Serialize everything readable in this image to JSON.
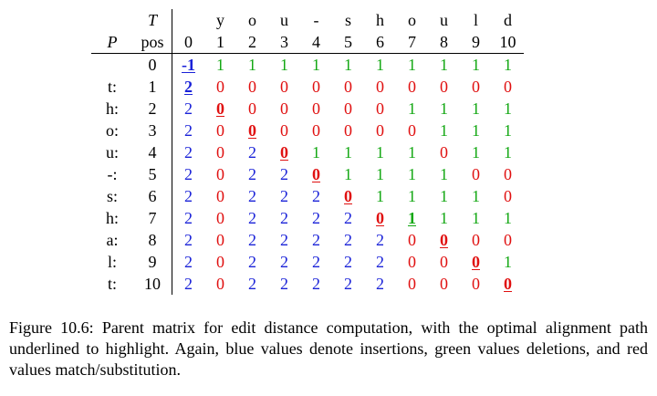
{
  "figure": {
    "row_axis_label": "P",
    "col_axis_label": "T",
    "pos_label": "pos",
    "text_chars": [
      "y",
      "o",
      "u",
      "-",
      "s",
      "h",
      "o",
      "u",
      "l",
      "d"
    ],
    "col_positions": [
      "0",
      "1",
      "2",
      "3",
      "4",
      "5",
      "6",
      "7",
      "8",
      "9",
      "10"
    ],
    "rows": [
      {
        "label": "",
        "pos": "0",
        "cells": [
          {
            "v": "-1",
            "c": "blue",
            "o": true
          },
          {
            "v": "1",
            "c": "green"
          },
          {
            "v": "1",
            "c": "green"
          },
          {
            "v": "1",
            "c": "green"
          },
          {
            "v": "1",
            "c": "green"
          },
          {
            "v": "1",
            "c": "green"
          },
          {
            "v": "1",
            "c": "green"
          },
          {
            "v": "1",
            "c": "green"
          },
          {
            "v": "1",
            "c": "green"
          },
          {
            "v": "1",
            "c": "green"
          },
          {
            "v": "1",
            "c": "green"
          }
        ]
      },
      {
        "label": "t:",
        "pos": "1",
        "cells": [
          {
            "v": "2",
            "c": "blue",
            "o": true
          },
          {
            "v": "0",
            "c": "red"
          },
          {
            "v": "0",
            "c": "red"
          },
          {
            "v": "0",
            "c": "red"
          },
          {
            "v": "0",
            "c": "red"
          },
          {
            "v": "0",
            "c": "red"
          },
          {
            "v": "0",
            "c": "red"
          },
          {
            "v": "0",
            "c": "red"
          },
          {
            "v": "0",
            "c": "red"
          },
          {
            "v": "0",
            "c": "red"
          },
          {
            "v": "0",
            "c": "red"
          }
        ]
      },
      {
        "label": "h:",
        "pos": "2",
        "cells": [
          {
            "v": "2",
            "c": "blue"
          },
          {
            "v": "0",
            "c": "red",
            "o": true
          },
          {
            "v": "0",
            "c": "red"
          },
          {
            "v": "0",
            "c": "red"
          },
          {
            "v": "0",
            "c": "red"
          },
          {
            "v": "0",
            "c": "red"
          },
          {
            "v": "0",
            "c": "red"
          },
          {
            "v": "1",
            "c": "green"
          },
          {
            "v": "1",
            "c": "green"
          },
          {
            "v": "1",
            "c": "green"
          },
          {
            "v": "1",
            "c": "green"
          }
        ]
      },
      {
        "label": "o:",
        "pos": "3",
        "cells": [
          {
            "v": "2",
            "c": "blue"
          },
          {
            "v": "0",
            "c": "red"
          },
          {
            "v": "0",
            "c": "red",
            "o": true
          },
          {
            "v": "0",
            "c": "red"
          },
          {
            "v": "0",
            "c": "red"
          },
          {
            "v": "0",
            "c": "red"
          },
          {
            "v": "0",
            "c": "red"
          },
          {
            "v": "0",
            "c": "red"
          },
          {
            "v": "1",
            "c": "green"
          },
          {
            "v": "1",
            "c": "green"
          },
          {
            "v": "1",
            "c": "green"
          }
        ]
      },
      {
        "label": "u:",
        "pos": "4",
        "cells": [
          {
            "v": "2",
            "c": "blue"
          },
          {
            "v": "0",
            "c": "red"
          },
          {
            "v": "2",
            "c": "blue"
          },
          {
            "v": "0",
            "c": "red",
            "o": true
          },
          {
            "v": "1",
            "c": "green"
          },
          {
            "v": "1",
            "c": "green"
          },
          {
            "v": "1",
            "c": "green"
          },
          {
            "v": "1",
            "c": "green"
          },
          {
            "v": "0",
            "c": "red"
          },
          {
            "v": "1",
            "c": "green"
          },
          {
            "v": "1",
            "c": "green"
          }
        ]
      },
      {
        "label": "-:",
        "pos": "5",
        "cells": [
          {
            "v": "2",
            "c": "blue"
          },
          {
            "v": "0",
            "c": "red"
          },
          {
            "v": "2",
            "c": "blue"
          },
          {
            "v": "2",
            "c": "blue"
          },
          {
            "v": "0",
            "c": "red",
            "o": true
          },
          {
            "v": "1",
            "c": "green"
          },
          {
            "v": "1",
            "c": "green"
          },
          {
            "v": "1",
            "c": "green"
          },
          {
            "v": "1",
            "c": "green"
          },
          {
            "v": "0",
            "c": "red"
          },
          {
            "v": "0",
            "c": "red"
          }
        ]
      },
      {
        "label": "s:",
        "pos": "6",
        "cells": [
          {
            "v": "2",
            "c": "blue"
          },
          {
            "v": "0",
            "c": "red"
          },
          {
            "v": "2",
            "c": "blue"
          },
          {
            "v": "2",
            "c": "blue"
          },
          {
            "v": "2",
            "c": "blue"
          },
          {
            "v": "0",
            "c": "red",
            "o": true
          },
          {
            "v": "1",
            "c": "green"
          },
          {
            "v": "1",
            "c": "green"
          },
          {
            "v": "1",
            "c": "green"
          },
          {
            "v": "1",
            "c": "green"
          },
          {
            "v": "0",
            "c": "red"
          }
        ]
      },
      {
        "label": "h:",
        "pos": "7",
        "cells": [
          {
            "v": "2",
            "c": "blue"
          },
          {
            "v": "0",
            "c": "red"
          },
          {
            "v": "2",
            "c": "blue"
          },
          {
            "v": "2",
            "c": "blue"
          },
          {
            "v": "2",
            "c": "blue"
          },
          {
            "v": "2",
            "c": "blue"
          },
          {
            "v": "0",
            "c": "red",
            "o": true
          },
          {
            "v": "1",
            "c": "green",
            "o": true
          },
          {
            "v": "1",
            "c": "green"
          },
          {
            "v": "1",
            "c": "green"
          },
          {
            "v": "1",
            "c": "green"
          }
        ]
      },
      {
        "label": "a:",
        "pos": "8",
        "cells": [
          {
            "v": "2",
            "c": "blue"
          },
          {
            "v": "0",
            "c": "red"
          },
          {
            "v": "2",
            "c": "blue"
          },
          {
            "v": "2",
            "c": "blue"
          },
          {
            "v": "2",
            "c": "blue"
          },
          {
            "v": "2",
            "c": "blue"
          },
          {
            "v": "2",
            "c": "blue"
          },
          {
            "v": "0",
            "c": "red"
          },
          {
            "v": "0",
            "c": "red",
            "o": true
          },
          {
            "v": "0",
            "c": "red"
          },
          {
            "v": "0",
            "c": "red"
          }
        ]
      },
      {
        "label": "l:",
        "pos": "9",
        "cells": [
          {
            "v": "2",
            "c": "blue"
          },
          {
            "v": "0",
            "c": "red"
          },
          {
            "v": "2",
            "c": "blue"
          },
          {
            "v": "2",
            "c": "blue"
          },
          {
            "v": "2",
            "c": "blue"
          },
          {
            "v": "2",
            "c": "blue"
          },
          {
            "v": "2",
            "c": "blue"
          },
          {
            "v": "0",
            "c": "red"
          },
          {
            "v": "0",
            "c": "red"
          },
          {
            "v": "0",
            "c": "red",
            "o": true
          },
          {
            "v": "1",
            "c": "green"
          }
        ]
      },
      {
        "label": "t:",
        "pos": "10",
        "cells": [
          {
            "v": "2",
            "c": "blue"
          },
          {
            "v": "0",
            "c": "red"
          },
          {
            "v": "2",
            "c": "blue"
          },
          {
            "v": "2",
            "c": "blue"
          },
          {
            "v": "2",
            "c": "blue"
          },
          {
            "v": "2",
            "c": "blue"
          },
          {
            "v": "2",
            "c": "blue"
          },
          {
            "v": "0",
            "c": "red"
          },
          {
            "v": "0",
            "c": "red"
          },
          {
            "v": "0",
            "c": "red"
          },
          {
            "v": "0",
            "c": "red",
            "o": true
          }
        ]
      }
    ],
    "colors": {
      "blue": "#1a22d8",
      "green": "#14a814",
      "red": "#e01010"
    }
  },
  "caption": {
    "text": "Figure 10.6: Parent matrix for edit distance computation, with the optimal alignment path underlined to highlight. Again, blue values denote insertions, green values deletions, and red values match/substitution."
  }
}
